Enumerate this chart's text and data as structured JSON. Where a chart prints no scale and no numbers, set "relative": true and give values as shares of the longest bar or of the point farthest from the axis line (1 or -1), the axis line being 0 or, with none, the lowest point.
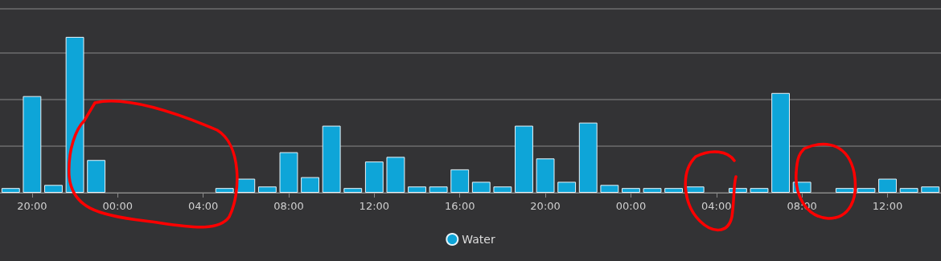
{
  "chart_data": {
    "type": "bar",
    "relative": true,
    "grid": "y",
    "legend": "bottom",
    "categories": [
      null,
      "20:00",
      null,
      null,
      null,
      "00:00",
      null,
      null,
      null,
      "04:00",
      null,
      null,
      null,
      "08:00",
      null,
      null,
      null,
      "12:00",
      null,
      null,
      null,
      "16:00",
      null,
      null,
      null,
      "20:00",
      null,
      null,
      null,
      "00:00",
      null,
      null,
      null,
      "04:00",
      null,
      null,
      null,
      "08:00",
      null,
      null,
      null,
      "12:00",
      null,
      null
    ],
    "series": [
      {
        "name": "Water",
        "color": "#0ea5d8",
        "values": [
          0.03,
          0.62,
          0.05,
          1,
          0.21,
          0,
          0,
          0,
          0,
          0,
          0.03,
          0.09,
          0.04,
          0.26,
          0.1,
          0.43,
          0.03,
          0.2,
          0.23,
          0.04,
          0.04,
          0.15,
          0.07,
          0.04,
          0.43,
          0.22,
          0.07,
          0.45,
          0.05,
          0.03,
          0.03,
          0.03,
          0.04,
          0,
          0.03,
          0.03,
          0.64,
          0.07,
          0,
          0.03,
          0.03,
          0.09,
          0.03,
          0.04
        ]
      }
    ]
  }
}
